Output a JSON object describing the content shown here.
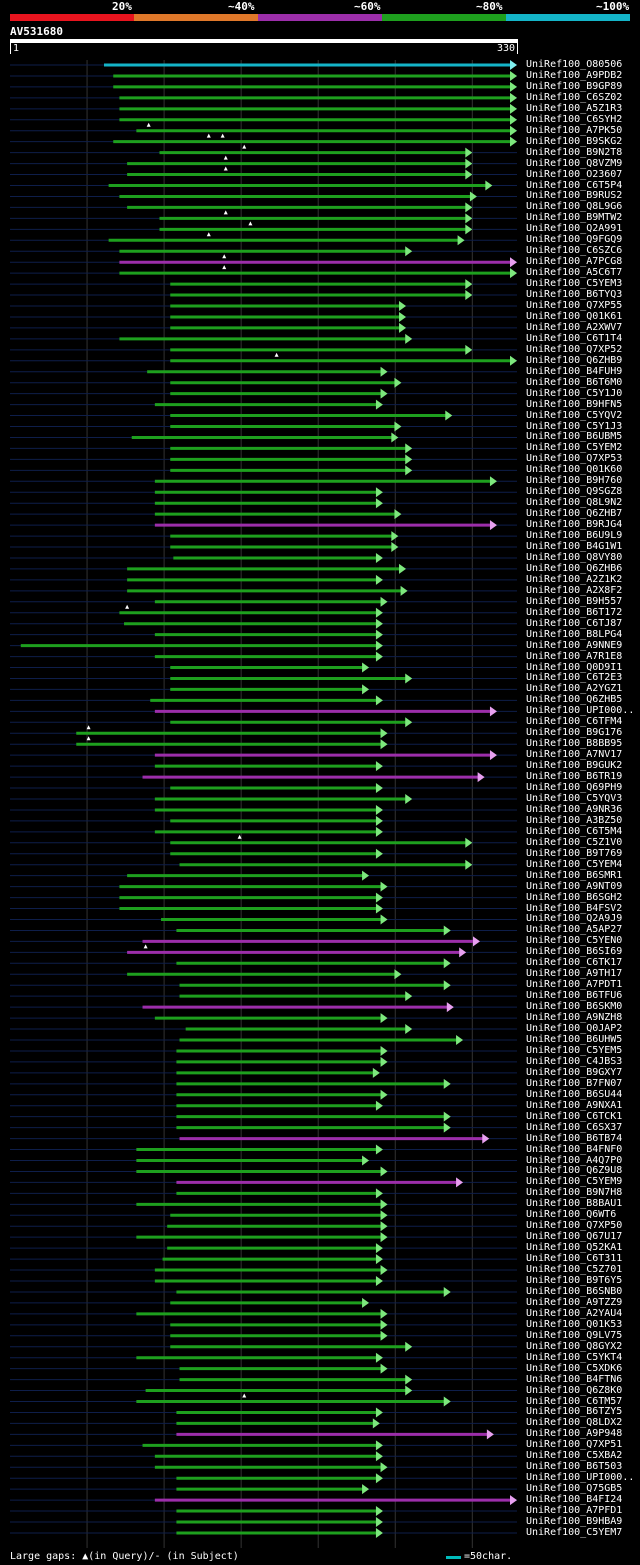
{
  "colors": {
    "background": "#000000",
    "grid": "#333333",
    "baseline": "#0e1e4a",
    "red": "#e8141e",
    "orange": "#e0782a",
    "purple": "#9c2eaa",
    "green": "#1ea01e",
    "cyan": "#14b4c8",
    "arrow_green": "#7de87d",
    "arrow_purple": "#e8a0f0",
    "arrow_cyan": "#7ff0f0"
  },
  "legend": [
    {
      "label": "20%",
      "color": "#e8141e"
    },
    {
      "label": "~40%",
      "color": "#e0782a"
    },
    {
      "label": "~60%",
      "color": "#9c2eaa"
    },
    {
      "label": "~80%",
      "color": "#1ea01e"
    },
    {
      "label": "~100%",
      "color": "#14b4c8"
    }
  ],
  "query": {
    "name": "AV531680",
    "start": "1",
    "end": "330",
    "length": 330
  },
  "hits": [
    {
      "id": "UniRef100_O80506",
      "start": 62,
      "end": 330,
      "color": "cyan"
    },
    {
      "id": "UniRef100_A9PDB2",
      "start": 68,
      "end": 330,
      "color": "green"
    },
    {
      "id": "UniRef100_B9GP89",
      "start": 68,
      "end": 330,
      "color": "green"
    },
    {
      "id": "UniRef100_C6SZ02",
      "start": 72,
      "end": 330,
      "color": "green"
    },
    {
      "id": "UniRef100_A5Z1R3",
      "start": 72,
      "end": 330,
      "color": "green"
    },
    {
      "id": "UniRef100_C6SYH2",
      "start": 72,
      "end": 330,
      "color": "green"
    },
    {
      "id": "UniRef100_A7PK50",
      "start": 83,
      "end": 330,
      "color": "green",
      "gaps": [
        91
      ]
    },
    {
      "id": "UniRef100_B9SKG2",
      "start": 68,
      "end": 330,
      "color": "green",
      "gaps": [
        130,
        139
      ]
    },
    {
      "id": "UniRef100_B9N2T8",
      "start": 98,
      "end": 301,
      "color": "green",
      "gaps": [
        153
      ]
    },
    {
      "id": "UniRef100_Q8VZM9",
      "start": 77,
      "end": 301,
      "color": "green",
      "gaps": [
        141
      ]
    },
    {
      "id": "UniRef100_O23607",
      "start": 77,
      "end": 301,
      "color": "green",
      "gaps": [
        141
      ]
    },
    {
      "id": "UniRef100_C6T5P4",
      "start": 65,
      "end": 314,
      "color": "green"
    },
    {
      "id": "UniRef100_B9RUS2",
      "start": 72,
      "end": 304,
      "color": "green"
    },
    {
      "id": "UniRef100_Q8L9G6",
      "start": 77,
      "end": 301,
      "color": "green"
    },
    {
      "id": "UniRef100_B9MTW2",
      "start": 98,
      "end": 301,
      "color": "green",
      "gaps": [
        141
      ]
    },
    {
      "id": "UniRef100_Q2A991",
      "start": 98,
      "end": 301,
      "color": "green",
      "gaps": [
        157
      ]
    },
    {
      "id": "UniRef100_Q9FGQ9",
      "start": 65,
      "end": 296,
      "color": "green",
      "gaps": [
        130
      ]
    },
    {
      "id": "UniRef100_C6SZC6",
      "start": 72,
      "end": 262,
      "color": "green"
    },
    {
      "id": "UniRef100_A7PCG8",
      "start": 72,
      "end": 330,
      "color": "purple",
      "gaps": [
        140
      ]
    },
    {
      "id": "UniRef100_A5C6T7",
      "start": 72,
      "end": 330,
      "color": "green",
      "gaps": [
        140
      ]
    },
    {
      "id": "UniRef100_C5YEM3",
      "start": 105,
      "end": 301,
      "color": "green"
    },
    {
      "id": "UniRef100_B6TYQ3",
      "start": 105,
      "end": 301,
      "color": "green"
    },
    {
      "id": "UniRef100_Q7XP55",
      "start": 105,
      "end": 258,
      "color": "green"
    },
    {
      "id": "UniRef100_Q01K61",
      "start": 105,
      "end": 258,
      "color": "green"
    },
    {
      "id": "UniRef100_A2XWV7",
      "start": 105,
      "end": 258,
      "color": "green"
    },
    {
      "id": "UniRef100_C6T1T4",
      "start": 72,
      "end": 262,
      "color": "green"
    },
    {
      "id": "UniRef100_Q7XP52",
      "start": 105,
      "end": 301,
      "color": "green"
    },
    {
      "id": "UniRef100_Q6ZHB9",
      "start": 105,
      "end": 330,
      "color": "green",
      "gaps": [
        174
      ]
    },
    {
      "id": "UniRef100_B4FUH9",
      "start": 90,
      "end": 246,
      "color": "green"
    },
    {
      "id": "UniRef100_B6T6M0",
      "start": 105,
      "end": 255,
      "color": "green"
    },
    {
      "id": "UniRef100_C5Y1J0",
      "start": 105,
      "end": 246,
      "color": "green"
    },
    {
      "id": "UniRef100_B9HFN5",
      "start": 95,
      "end": 243,
      "color": "green"
    },
    {
      "id": "UniRef100_C5YQV2",
      "start": 105,
      "end": 288,
      "color": "green"
    },
    {
      "id": "UniRef100_C5Y1J3",
      "start": 105,
      "end": 255,
      "color": "green"
    },
    {
      "id": "UniRef100_B6UBM5",
      "start": 80,
      "end": 253,
      "color": "green"
    },
    {
      "id": "UniRef100_C5YEM2",
      "start": 105,
      "end": 262,
      "color": "green"
    },
    {
      "id": "UniRef100_Q7XP53",
      "start": 105,
      "end": 262,
      "color": "green"
    },
    {
      "id": "UniRef100_Q01K60",
      "start": 105,
      "end": 262,
      "color": "green"
    },
    {
      "id": "UniRef100_B9H760",
      "start": 95,
      "end": 317,
      "color": "green"
    },
    {
      "id": "UniRef100_Q9SGZ8",
      "start": 95,
      "end": 243,
      "color": "green"
    },
    {
      "id": "UniRef100_Q8L9N2",
      "start": 95,
      "end": 243,
      "color": "green"
    },
    {
      "id": "UniRef100_Q6ZHB7",
      "start": 95,
      "end": 255,
      "color": "green"
    },
    {
      "id": "UniRef100_B9RJG4",
      "start": 95,
      "end": 317,
      "color": "purple"
    },
    {
      "id": "UniRef100_B6U9L9",
      "start": 105,
      "end": 253,
      "color": "green"
    },
    {
      "id": "UniRef100_B4G1W1",
      "start": 105,
      "end": 253,
      "color": "green"
    },
    {
      "id": "UniRef100_Q8VY80",
      "start": 107,
      "end": 243,
      "color": "green"
    },
    {
      "id": "UniRef100_Q6ZHB6",
      "start": 77,
      "end": 258,
      "color": "green"
    },
    {
      "id": "UniRef100_A2Z1K2",
      "start": 77,
      "end": 243,
      "color": "green"
    },
    {
      "id": "UniRef100_A2X8F2",
      "start": 77,
      "end": 259,
      "color": "green"
    },
    {
      "id": "UniRef100_B9H557",
      "start": 95,
      "end": 246,
      "color": "green"
    },
    {
      "id": "UniRef100_B6T172",
      "start": 72,
      "end": 243,
      "color": "green",
      "gaps": [
        77
      ]
    },
    {
      "id": "UniRef100_C6TJ87",
      "start": 75,
      "end": 243,
      "color": "green"
    },
    {
      "id": "UniRef100_B8LPG4",
      "start": 95,
      "end": 243,
      "color": "green"
    },
    {
      "id": "UniRef100_A9NNE9",
      "start": 8,
      "end": 243,
      "color": "green"
    },
    {
      "id": "UniRef100_A7R1E8",
      "start": 95,
      "end": 243,
      "color": "green"
    },
    {
      "id": "UniRef100_Q0D9I1",
      "start": 105,
      "end": 234,
      "color": "green"
    },
    {
      "id": "UniRef100_C6T2E3",
      "start": 105,
      "end": 262,
      "color": "green"
    },
    {
      "id": "UniRef100_A2YGZ1",
      "start": 105,
      "end": 234,
      "color": "green"
    },
    {
      "id": "UniRef100_Q6ZHB5",
      "start": 92,
      "end": 243,
      "color": "green"
    },
    {
      "id": "UniRef100_UPI000..",
      "start": 95,
      "end": 317,
      "color": "purple"
    },
    {
      "id": "UniRef100_C6TFM4",
      "start": 105,
      "end": 262,
      "color": "green"
    },
    {
      "id": "UniRef100_B9G176",
      "start": 44,
      "end": 246,
      "color": "green",
      "gaps": [
        52
      ]
    },
    {
      "id": "UniRef100_B8BB95",
      "start": 44,
      "end": 246,
      "color": "green",
      "gaps": [
        52
      ]
    },
    {
      "id": "UniRef100_A7NV17",
      "start": 95,
      "end": 317,
      "color": "purple"
    },
    {
      "id": "UniRef100_B9GUK2",
      "start": 95,
      "end": 243,
      "color": "green"
    },
    {
      "id": "UniRef100_B6TR19",
      "start": 87,
      "end": 309,
      "color": "purple"
    },
    {
      "id": "UniRef100_Q69PH9",
      "start": 105,
      "end": 243,
      "color": "green"
    },
    {
      "id": "UniRef100_C5YQV3",
      "start": 95,
      "end": 262,
      "color": "green"
    },
    {
      "id": "UniRef100_A9NR36",
      "start": 95,
      "end": 243,
      "color": "green"
    },
    {
      "id": "UniRef100_A3BZ50",
      "start": 105,
      "end": 243,
      "color": "green"
    },
    {
      "id": "UniRef100_C6T5M4",
      "start": 95,
      "end": 243,
      "color": "green"
    },
    {
      "id": "UniRef100_C5Z1V0",
      "start": 105,
      "end": 301,
      "color": "green",
      "gaps": [
        150
      ]
    },
    {
      "id": "UniRef100_B9T769",
      "start": 105,
      "end": 243,
      "color": "green"
    },
    {
      "id": "UniRef100_C5YEM4",
      "start": 111,
      "end": 301,
      "color": "green"
    },
    {
      "id": "UniRef100_B6SMR1",
      "start": 77,
      "end": 234,
      "color": "green"
    },
    {
      "id": "UniRef100_A9NT09",
      "start": 72,
      "end": 246,
      "color": "green"
    },
    {
      "id": "UniRef100_B6SGH2",
      "start": 72,
      "end": 243,
      "color": "green"
    },
    {
      "id": "UniRef100_B4FSV2",
      "start": 72,
      "end": 243,
      "color": "green"
    },
    {
      "id": "UniRef100_Q2A9J9",
      "start": 99,
      "end": 246,
      "color": "green"
    },
    {
      "id": "UniRef100_A5AP27",
      "start": 109,
      "end": 287,
      "color": "green"
    },
    {
      "id": "UniRef100_C5YEN0",
      "start": 87,
      "end": 306,
      "color": "purple"
    },
    {
      "id": "UniRef100_B6SI69",
      "start": 77,
      "end": 297,
      "color": "purple",
      "gaps": [
        89
      ]
    },
    {
      "id": "UniRef100_C6TK17",
      "start": 109,
      "end": 287,
      "color": "green"
    },
    {
      "id": "UniRef100_A9TH17",
      "start": 77,
      "end": 255,
      "color": "green"
    },
    {
      "id": "UniRef100_A7PDT1",
      "start": 111,
      "end": 287,
      "color": "green"
    },
    {
      "id": "UniRef100_B6TFU6",
      "start": 111,
      "end": 262,
      "color": "green"
    },
    {
      "id": "UniRef100_B6SKM0",
      "start": 87,
      "end": 289,
      "color": "purple"
    },
    {
      "id": "UniRef100_A9NZH8",
      "start": 95,
      "end": 246,
      "color": "green"
    },
    {
      "id": "UniRef100_Q0JAP2",
      "start": 115,
      "end": 262,
      "color": "green"
    },
    {
      "id": "UniRef100_B6UHW5",
      "start": 111,
      "end": 295,
      "color": "green"
    },
    {
      "id": "UniRef100_C5YEM5",
      "start": 109,
      "end": 246,
      "color": "green"
    },
    {
      "id": "UniRef100_C4JBS3",
      "start": 109,
      "end": 246,
      "color": "green"
    },
    {
      "id": "UniRef100_B9GXY7",
      "start": 109,
      "end": 241,
      "color": "green"
    },
    {
      "id": "UniRef100_B7FN07",
      "start": 109,
      "end": 287,
      "color": "green"
    },
    {
      "id": "UniRef100_B6SU44",
      "start": 109,
      "end": 246,
      "color": "green"
    },
    {
      "id": "UniRef100_A9NXA1",
      "start": 109,
      "end": 243,
      "color": "green"
    },
    {
      "id": "UniRef100_C6TCK1",
      "start": 109,
      "end": 287,
      "color": "green"
    },
    {
      "id": "UniRef100_C6SX37",
      "start": 109,
      "end": 287,
      "color": "green"
    },
    {
      "id": "UniRef100_B6TB74",
      "start": 111,
      "end": 312,
      "color": "purple"
    },
    {
      "id": "UniRef100_B4FNF0",
      "start": 83,
      "end": 243,
      "color": "green"
    },
    {
      "id": "UniRef100_A4Q7P0",
      "start": 83,
      "end": 234,
      "color": "green"
    },
    {
      "id": "UniRef100_Q6Z9U8",
      "start": 83,
      "end": 246,
      "color": "green"
    },
    {
      "id": "UniRef100_C5YEM9",
      "start": 109,
      "end": 295,
      "color": "purple"
    },
    {
      "id": "UniRef100_B9N7H8",
      "start": 109,
      "end": 243,
      "color": "green"
    },
    {
      "id": "UniRef100_B8BAU1",
      "start": 83,
      "end": 246,
      "color": "green"
    },
    {
      "id": "UniRef100_Q6WT6",
      "start": 105,
      "end": 246,
      "color": "green"
    },
    {
      "id": "UniRef100_Q7XP50",
      "start": 103,
      "end": 246,
      "color": "green"
    },
    {
      "id": "UniRef100_Q67U17",
      "start": 83,
      "end": 246,
      "color": "green"
    },
    {
      "id": "UniRef100_Q52KA1",
      "start": 103,
      "end": 243,
      "color": "green"
    },
    {
      "id": "UniRef100_C6T311",
      "start": 100,
      "end": 243,
      "color": "green"
    },
    {
      "id": "UniRef100_C5Z701",
      "start": 95,
      "end": 246,
      "color": "green"
    },
    {
      "id": "UniRef100_B9T6Y5",
      "start": 95,
      "end": 243,
      "color": "green"
    },
    {
      "id": "UniRef100_B6SNB0",
      "start": 109,
      "end": 287,
      "color": "green"
    },
    {
      "id": "UniRef100_A9TZZ9",
      "start": 105,
      "end": 234,
      "color": "green"
    },
    {
      "id": "UniRef100_A2YAU4",
      "start": 83,
      "end": 246,
      "color": "green"
    },
    {
      "id": "UniRef100_Q01K53",
      "start": 105,
      "end": 246,
      "color": "green"
    },
    {
      "id": "UniRef100_Q9LV75",
      "start": 105,
      "end": 246,
      "color": "green"
    },
    {
      "id": "UniRef100_Q8GYX2",
      "start": 105,
      "end": 262,
      "color": "green"
    },
    {
      "id": "UniRef100_C5YKT4",
      "start": 83,
      "end": 243,
      "color": "green"
    },
    {
      "id": "UniRef100_C5XDK6",
      "start": 111,
      "end": 246,
      "color": "green"
    },
    {
      "id": "UniRef100_B4FTN6",
      "start": 111,
      "end": 262,
      "color": "green"
    },
    {
      "id": "UniRef100_Q6Z8K0",
      "start": 89,
      "end": 262,
      "color": "green"
    },
    {
      "id": "UniRef100_C6TM57",
      "start": 83,
      "end": 287,
      "color": "green",
      "gaps": [
        153
      ]
    },
    {
      "id": "UniRef100_B6TZY5",
      "start": 109,
      "end": 243,
      "color": "green"
    },
    {
      "id": "UniRef100_Q8LDX2",
      "start": 109,
      "end": 241,
      "color": "green"
    },
    {
      "id": "UniRef100_A9P948",
      "start": 109,
      "end": 315,
      "color": "purple"
    },
    {
      "id": "UniRef100_Q7XP51",
      "start": 87,
      "end": 243,
      "color": "green"
    },
    {
      "id": "UniRef100_C5XBA2",
      "start": 95,
      "end": 243,
      "color": "green"
    },
    {
      "id": "UniRef100_B6T503",
      "start": 95,
      "end": 246,
      "color": "green"
    },
    {
      "id": "UniRef100_UPI000..",
      "start": 109,
      "end": 243,
      "color": "green"
    },
    {
      "id": "UniRef100_Q75GB5",
      "start": 109,
      "end": 234,
      "color": "green"
    },
    {
      "id": "UniRef100_B4FI24",
      "start": 95,
      "end": 330,
      "color": "purple"
    },
    {
      "id": "UniRef100_A7PFD1",
      "start": 109,
      "end": 243,
      "color": "green"
    },
    {
      "id": "UniRef100_B9HBA9",
      "start": 109,
      "end": 243,
      "color": "green"
    },
    {
      "id": "UniRef100_C5YEM7",
      "start": 109,
      "end": 243,
      "color": "green"
    }
  ],
  "footer": {
    "gaps_label": "Large gaps: ▲(in Query)/- (in Subject)",
    "scale_label": "=50char."
  }
}
